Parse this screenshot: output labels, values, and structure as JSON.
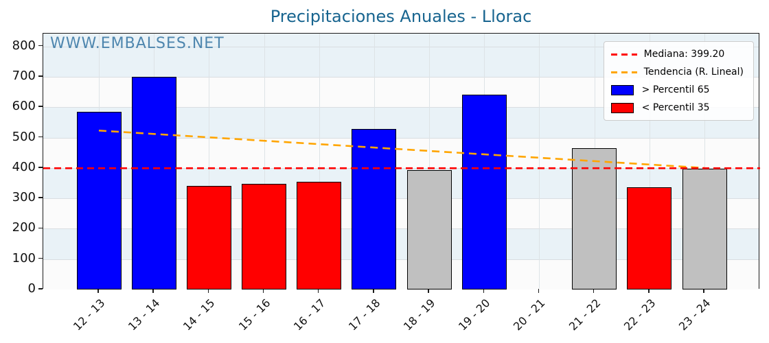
{
  "figure": {
    "title": "Precipitaciones Anuales - Llorac",
    "watermark": "WWW.EMBALSES.NET"
  },
  "chart_data": {
    "type": "bar",
    "title": "Precipitaciones Anuales - Llorac",
    "watermark": "WWW.EMBALSES.NET",
    "xlabel": "",
    "ylabel": "",
    "categories": [
      "12 - 13",
      "13 - 14",
      "14 - 15",
      "15 - 16",
      "16 - 17",
      "17 - 18",
      "18 - 19",
      "19 - 20",
      "20 - 21",
      "21 - 22",
      "22 - 23",
      "23 - 24"
    ],
    "values": [
      584,
      700,
      341,
      347,
      354,
      528,
      392,
      641,
      null,
      466,
      337,
      398
    ],
    "bar_class": [
      "above",
      "above",
      "below",
      "below",
      "below",
      "above",
      "between",
      "above",
      "none",
      "between",
      "below",
      "between"
    ],
    "ylim": [
      0,
      842
    ],
    "yticks": [
      0,
      100,
      200,
      300,
      400,
      500,
      600,
      700,
      800
    ],
    "median": 399.2,
    "trend_line": {
      "start_category": "12 - 13",
      "start_value": 523,
      "end_category": "23 - 24",
      "end_value": 400
    },
    "grid": true,
    "x_tick_rotation": 45,
    "legend": {
      "position": "upper right",
      "entries": [
        {
          "sample": "dashed-line",
          "color": "#ff0000",
          "label": "Mediana: 399.20"
        },
        {
          "sample": "dashed-line",
          "color": "#ffa500",
          "label": "Tendencia (R. Lineal)"
        },
        {
          "sample": "patch",
          "color": "#0000ff",
          "label": "> Percentil 65"
        },
        {
          "sample": "patch",
          "color": "#ff0000",
          "label": "< Percentil 35"
        }
      ]
    },
    "colors": {
      "above": "#0000ff",
      "below": "#ff0000",
      "between": "#c0c0c0",
      "bar_edge": "#000000",
      "median_line": "#ff0000",
      "trend_line": "#ffa500",
      "title": "#17648f",
      "watermark": "#4e86ae",
      "band_blue": "#e9f2f7",
      "band_white": "#fbfbfb"
    }
  }
}
